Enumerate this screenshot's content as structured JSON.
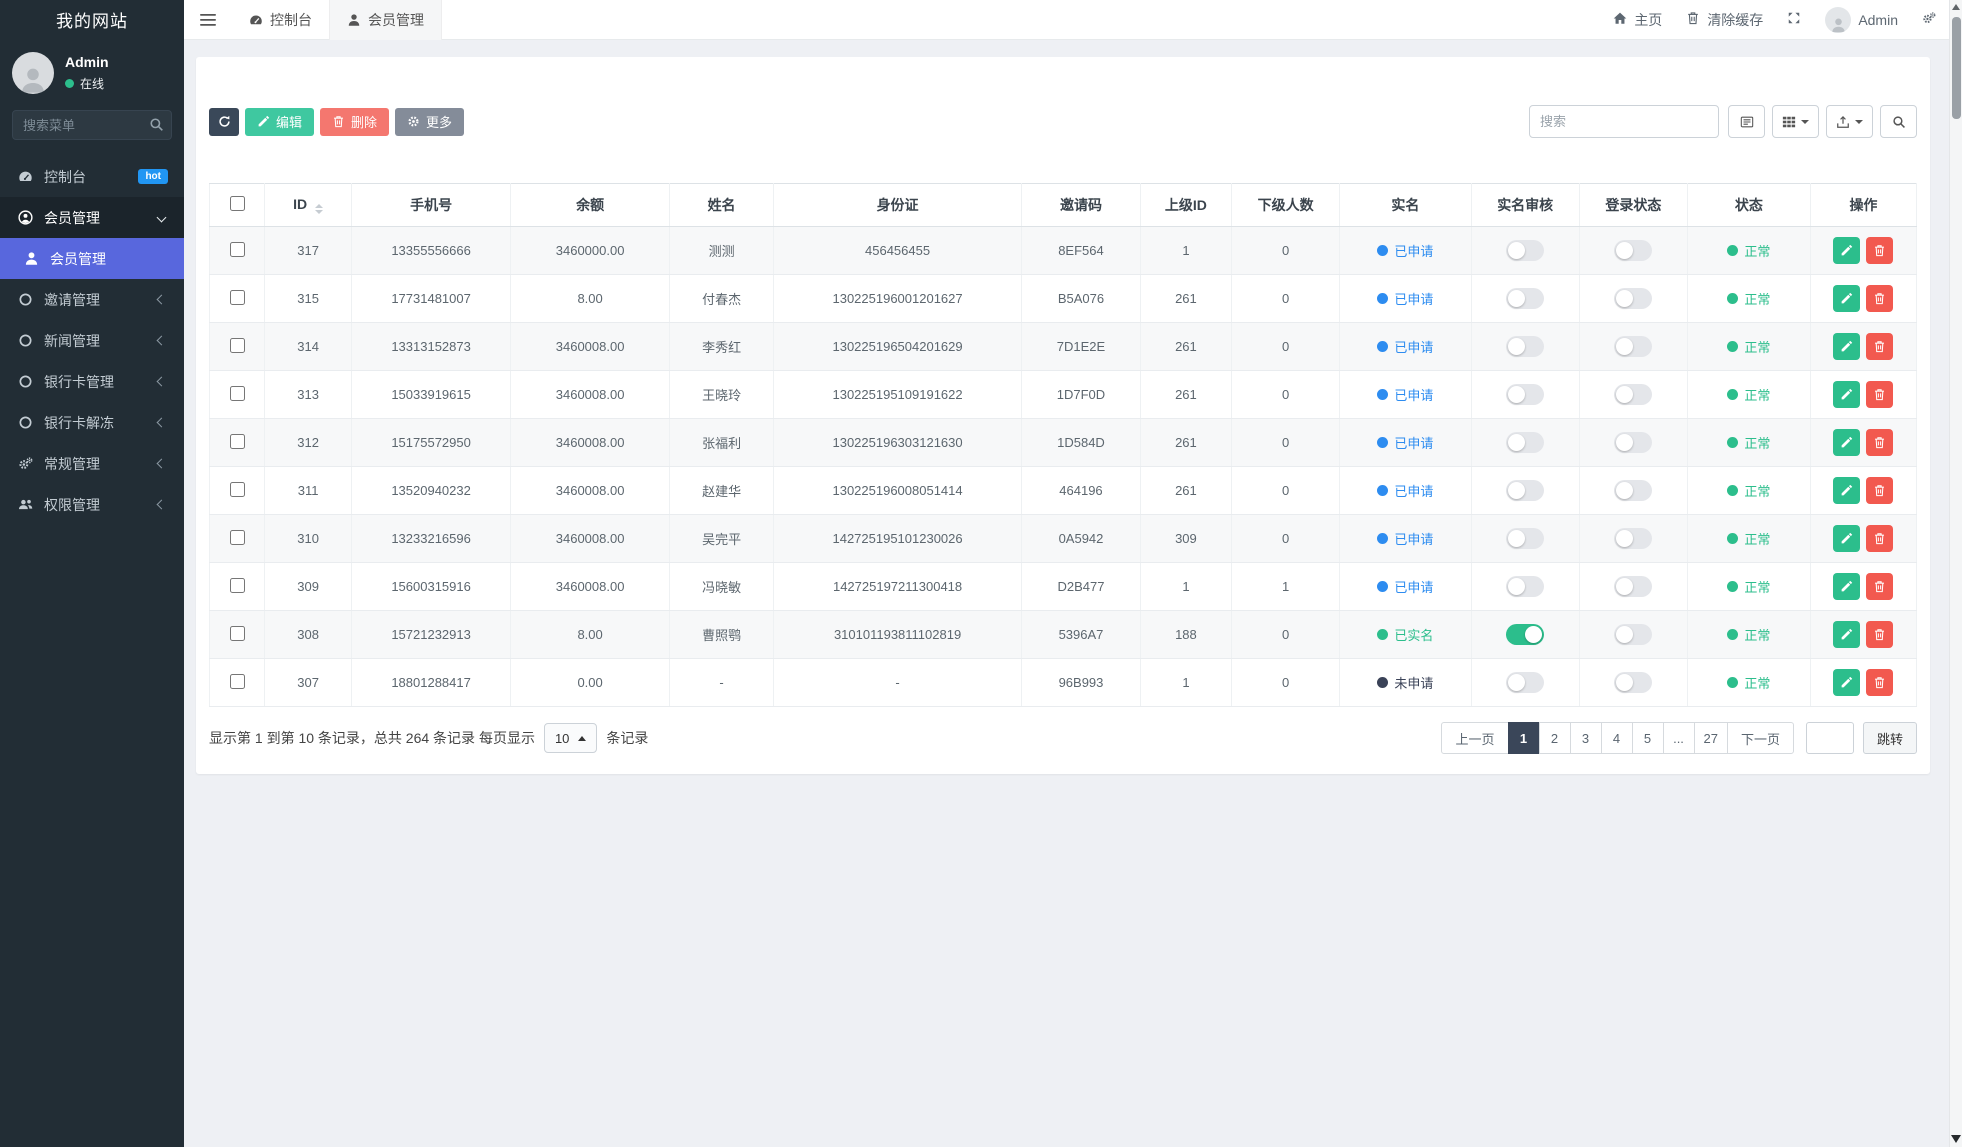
{
  "sidebar": {
    "brand": "我的网站",
    "user": {
      "name": "Admin",
      "status": "在线"
    },
    "search_placeholder": "搜索菜单",
    "items": [
      {
        "name": "console",
        "label": "控制台",
        "icon": "dashboard-icon",
        "badge": "hot"
      },
      {
        "name": "member-group",
        "label": "会员管理",
        "icon": "user-circle-icon",
        "state": "open",
        "chevron": "down"
      },
      {
        "name": "member-list",
        "label": "会员管理",
        "icon": "user-icon",
        "state": "active",
        "sub": true
      },
      {
        "name": "invite",
        "label": "邀请管理",
        "icon": "circle-icon",
        "chevron": "left"
      },
      {
        "name": "news",
        "label": "新闻管理",
        "icon": "circle-icon",
        "chevron": "left"
      },
      {
        "name": "bankcard",
        "label": "银行卡管理",
        "icon": "circle-icon",
        "chevron": "left"
      },
      {
        "name": "bankcard-unfreeze",
        "label": "银行卡解冻",
        "icon": "circle-icon",
        "chevron": "left"
      },
      {
        "name": "general",
        "label": "常规管理",
        "icon": "cogs-icon",
        "chevron": "left"
      },
      {
        "name": "permission",
        "label": "权限管理",
        "icon": "users-icon",
        "chevron": "left"
      }
    ]
  },
  "topbar": {
    "tabs": [
      {
        "name": "console",
        "label": "控制台",
        "icon": "dashboard-icon"
      },
      {
        "name": "member",
        "label": "会员管理",
        "icon": "user-icon",
        "active": true
      }
    ],
    "home_label": "主页",
    "clear_cache_label": "清除缓存",
    "user_label": "Admin"
  },
  "toolbar": {
    "edit_label": "编辑",
    "delete_label": "删除",
    "more_label": "更多",
    "search_placeholder": "搜索"
  },
  "table": {
    "columns": [
      {
        "key": "select",
        "label": ""
      },
      {
        "key": "id",
        "label": "ID",
        "sortable": true
      },
      {
        "key": "phone",
        "label": "手机号"
      },
      {
        "key": "balance",
        "label": "余额"
      },
      {
        "key": "name",
        "label": "姓名"
      },
      {
        "key": "id_card",
        "label": "身份证"
      },
      {
        "key": "invite_code",
        "label": "邀请码"
      },
      {
        "key": "parent_id",
        "label": "上级ID"
      },
      {
        "key": "sub_count",
        "label": "下级人数"
      },
      {
        "key": "realname",
        "label": "实名"
      },
      {
        "key": "audit",
        "label": "实名审核"
      },
      {
        "key": "login",
        "label": "登录状态"
      },
      {
        "key": "status",
        "label": "状态"
      },
      {
        "key": "actions",
        "label": "操作"
      }
    ],
    "rows": [
      {
        "id": "317",
        "phone": "13355556666",
        "balance": "3460000.00",
        "name": "测测",
        "id_card": "456456455",
        "invite_code": "8EF564",
        "parent_id": "1",
        "sub_count": "0",
        "realname": {
          "label": "已申请",
          "state": "applied"
        },
        "audit_on": false,
        "login_on": false,
        "status": "正常"
      },
      {
        "id": "315",
        "phone": "17731481007",
        "balance": "8.00",
        "name": "付春杰",
        "id_card": "130225196001201627",
        "invite_code": "B5A076",
        "parent_id": "261",
        "sub_count": "0",
        "realname": {
          "label": "已申请",
          "state": "applied"
        },
        "audit_on": false,
        "login_on": false,
        "status": "正常"
      },
      {
        "id": "314",
        "phone": "13313152873",
        "balance": "3460008.00",
        "name": "李秀红",
        "id_card": "130225196504201629",
        "invite_code": "7D1E2E",
        "parent_id": "261",
        "sub_count": "0",
        "realname": {
          "label": "已申请",
          "state": "applied"
        },
        "audit_on": false,
        "login_on": false,
        "status": "正常"
      },
      {
        "id": "313",
        "phone": "15033919615",
        "balance": "3460008.00",
        "name": "王晓玲",
        "id_card": "130225195109191622",
        "invite_code": "1D7F0D",
        "parent_id": "261",
        "sub_count": "0",
        "realname": {
          "label": "已申请",
          "state": "applied"
        },
        "audit_on": false,
        "login_on": false,
        "status": "正常"
      },
      {
        "id": "312",
        "phone": "15175572950",
        "balance": "3460008.00",
        "name": "张福利",
        "id_card": "130225196303121630",
        "invite_code": "1D584D",
        "parent_id": "261",
        "sub_count": "0",
        "realname": {
          "label": "已申请",
          "state": "applied"
        },
        "audit_on": false,
        "login_on": false,
        "status": "正常"
      },
      {
        "id": "311",
        "phone": "13520940232",
        "balance": "3460008.00",
        "name": "赵建华",
        "id_card": "130225196008051414",
        "invite_code": "464196",
        "parent_id": "261",
        "sub_count": "0",
        "realname": {
          "label": "已申请",
          "state": "applied"
        },
        "audit_on": false,
        "login_on": false,
        "status": "正常"
      },
      {
        "id": "310",
        "phone": "13233216596",
        "balance": "3460008.00",
        "name": "吴完平",
        "id_card": "142725195101230026",
        "invite_code": "0A5942",
        "parent_id": "309",
        "sub_count": "0",
        "realname": {
          "label": "已申请",
          "state": "applied"
        },
        "audit_on": false,
        "login_on": false,
        "status": "正常"
      },
      {
        "id": "309",
        "phone": "15600315916",
        "balance": "3460008.00",
        "name": "冯晓敏",
        "id_card": "142725197211300418",
        "invite_code": "D2B477",
        "parent_id": "1",
        "sub_count": "1",
        "realname": {
          "label": "已申请",
          "state": "applied"
        },
        "audit_on": false,
        "login_on": false,
        "status": "正常"
      },
      {
        "id": "308",
        "phone": "15721232913",
        "balance": "8.00",
        "name": "曹照鹗",
        "id_card": "310101193811102819",
        "invite_code": "5396A7",
        "parent_id": "188",
        "sub_count": "0",
        "realname": {
          "label": "已实名",
          "state": "verified"
        },
        "audit_on": true,
        "login_on": false,
        "status": "正常"
      },
      {
        "id": "307",
        "phone": "18801288417",
        "balance": "0.00",
        "name": "-",
        "id_card": "-",
        "invite_code": "96B993",
        "parent_id": "1",
        "sub_count": "0",
        "realname": {
          "label": "未申请",
          "state": "none"
        },
        "audit_on": false,
        "login_on": false,
        "status": "正常"
      }
    ]
  },
  "footer": {
    "info": "显示第 1 到第 10 条记录，总共 264 条记录 每页显示",
    "page_size": "10",
    "info_suffix": "条记录",
    "prev": "上一页",
    "next": "下一页",
    "pages": [
      "1",
      "2",
      "3",
      "4",
      "5",
      "...",
      "27"
    ],
    "active_page": "1",
    "jump_label": "跳转"
  }
}
